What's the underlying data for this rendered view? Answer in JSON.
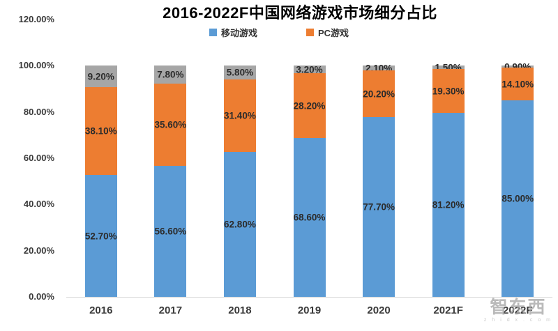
{
  "chart_data": {
    "type": "bar",
    "stacked": true,
    "title": "2016-2022F中国网络游戏市场细分占比",
    "categories": [
      "2016",
      "2017",
      "2018",
      "2019",
      "2020",
      "2021F",
      "2022F"
    ],
    "series": [
      {
        "name": "移动游戏",
        "color": "#5B9BD5",
        "show_in_legend": true,
        "values": [
          52.7,
          56.6,
          62.8,
          68.6,
          77.7,
          81.2,
          85.0
        ],
        "labels": [
          "52.70%",
          "56.60%",
          "62.80%",
          "68.60%",
          "77.70%",
          "81.20%",
          "85.00%"
        ]
      },
      {
        "name": "PC游戏",
        "color": "#ED7D31",
        "show_in_legend": true,
        "values": [
          38.1,
          35.6,
          31.4,
          28.2,
          20.2,
          19.3,
          14.1
        ],
        "labels": [
          "38.10%",
          "35.60%",
          "31.40%",
          "28.20%",
          "20.20%",
          "19.30%",
          "14.10%"
        ]
      },
      {
        "name": "",
        "color": "#A6A6A6",
        "show_in_legend": false,
        "values": [
          9.2,
          7.8,
          5.8,
          3.2,
          2.1,
          1.5,
          0.9
        ],
        "labels": [
          "9.20%",
          "7.80%",
          "5.80%",
          "3.20%",
          "2.10%",
          "1.50%",
          "0.90%"
        ]
      }
    ],
    "y_ticks": [
      "120.00%",
      "100.00%",
      "80.00%",
      "60.00%",
      "40.00%",
      "20.00%",
      "0.00%"
    ],
    "ylim": [
      0,
      120
    ],
    "grid": false,
    "legend_position": "top"
  },
  "watermark": {
    "logo_text": "智东西",
    "sub_text": "z h i d x . c o m"
  }
}
